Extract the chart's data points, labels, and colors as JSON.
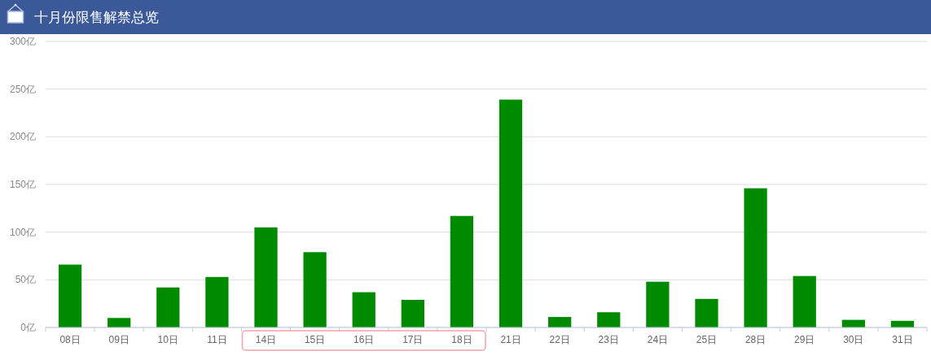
{
  "chart_data": {
    "type": "bar",
    "title": "十月份限售解禁总览",
    "categories": [
      "08日",
      "09日",
      "10日",
      "11日",
      "14日",
      "15日",
      "16日",
      "17日",
      "18日",
      "21日",
      "22日",
      "23日",
      "24日",
      "25日",
      "28日",
      "29日",
      "30日",
      "31日"
    ],
    "values": [
      66,
      10,
      42,
      53,
      105,
      79,
      37,
      29,
      117,
      239,
      11,
      16,
      48,
      30,
      146,
      54,
      8,
      7
    ],
    "color": "#008a00",
    "ylim": [
      0,
      300
    ],
    "yticks": [
      {
        "value": 0,
        "label": "0亿"
      },
      {
        "value": 50,
        "label": "50亿"
      },
      {
        "value": 100,
        "label": "100亿"
      },
      {
        "value": 150,
        "label": "150亿"
      },
      {
        "value": 200,
        "label": "200亿"
      },
      {
        "value": 250,
        "label": "250亿"
      },
      {
        "value": 300,
        "label": "300亿"
      }
    ],
    "grid": "y"
  }
}
